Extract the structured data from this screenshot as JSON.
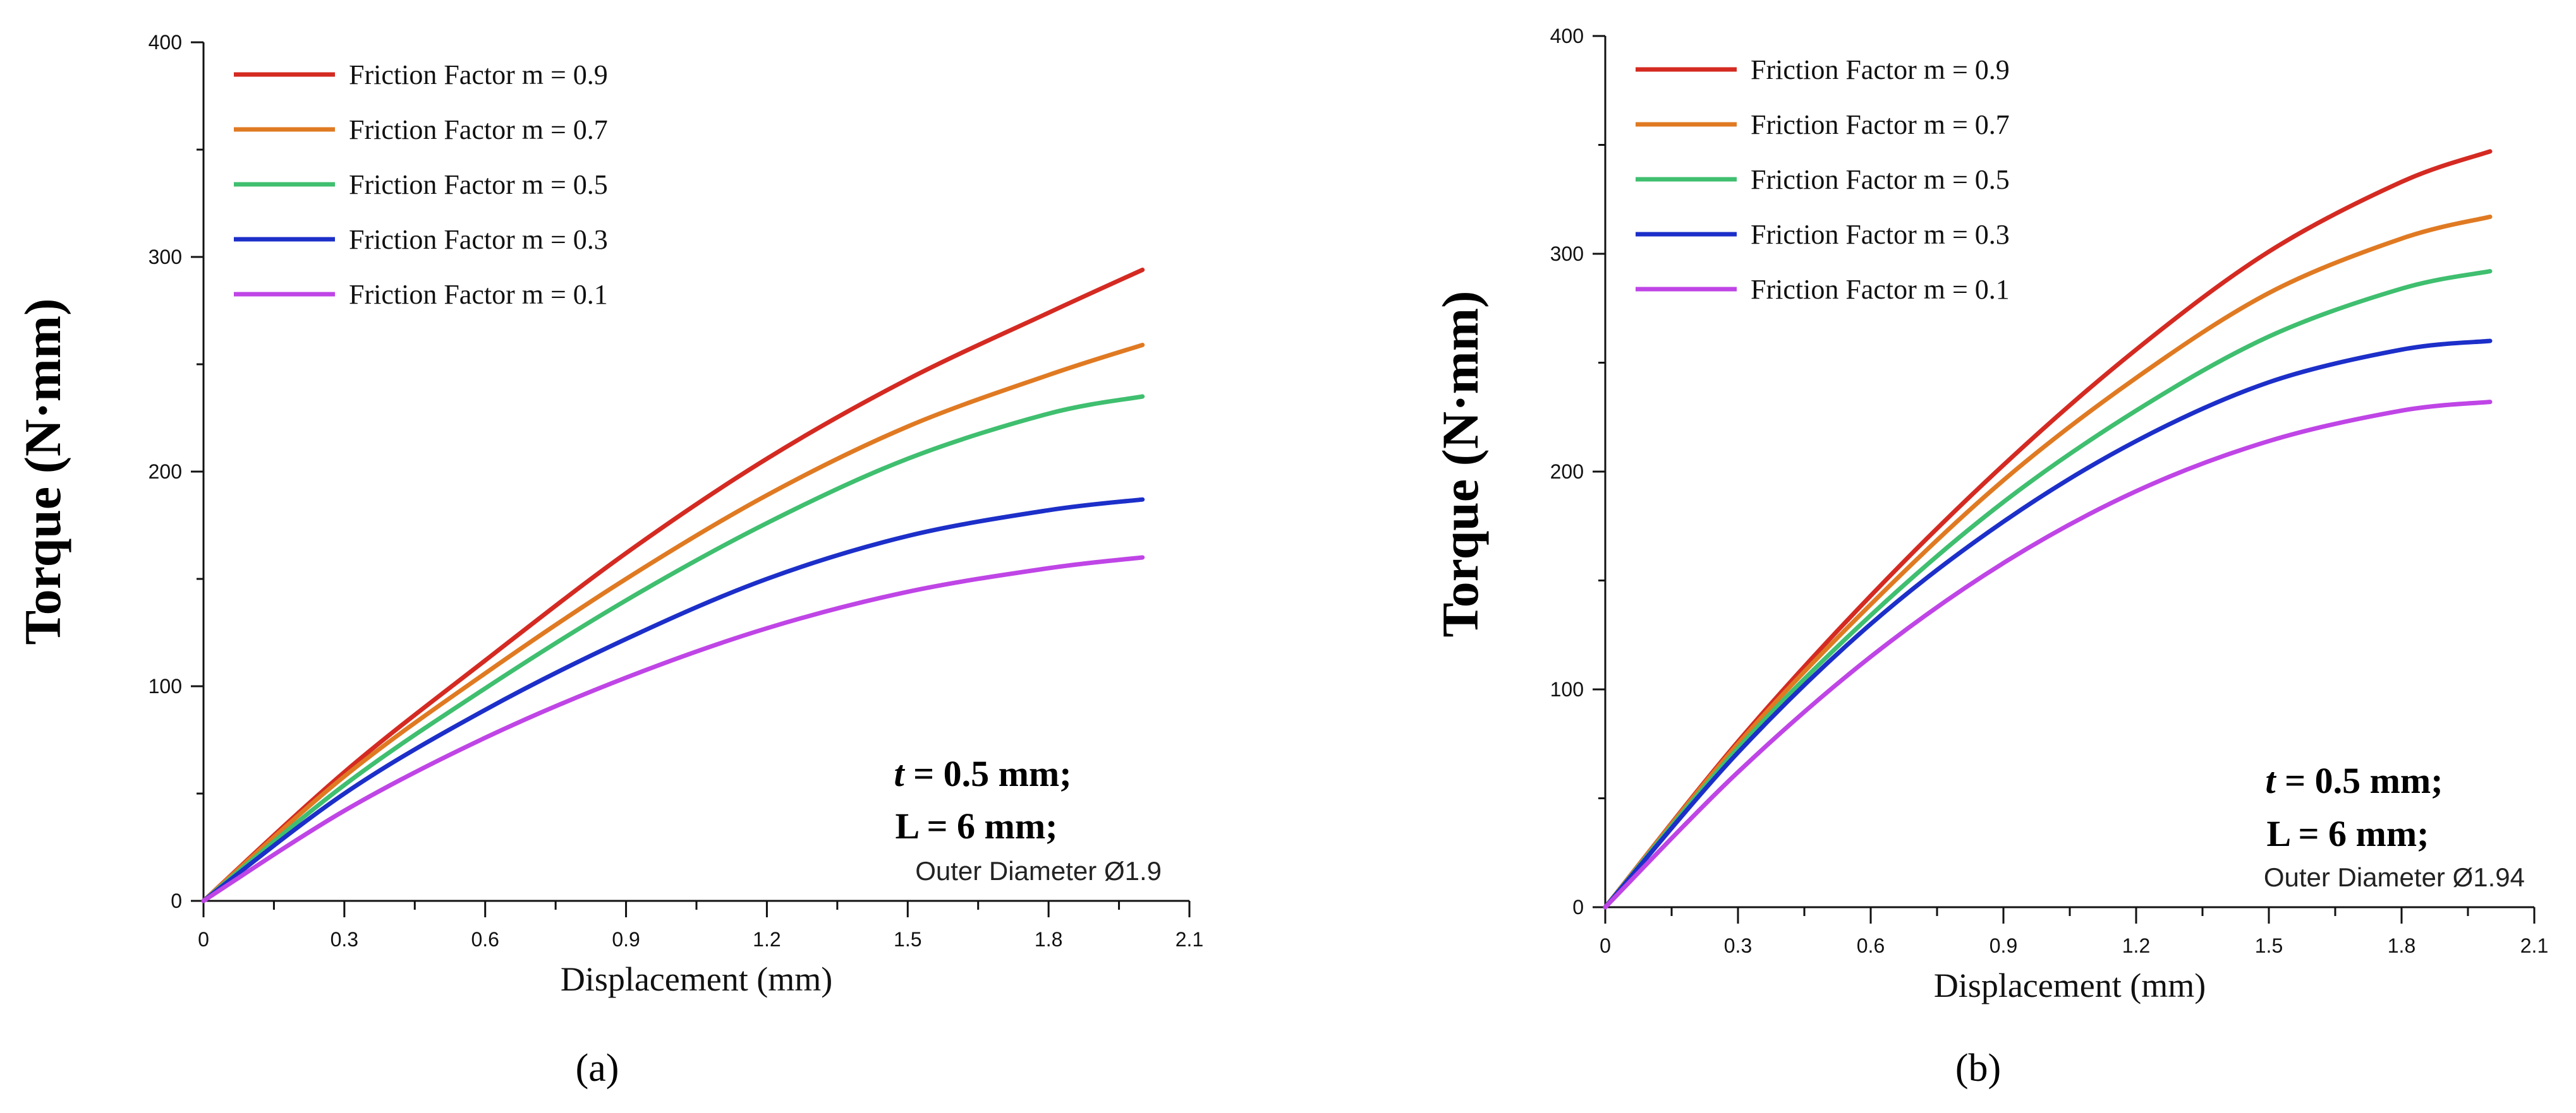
{
  "chart_data": [
    {
      "type": "line",
      "panel_caption": "(a)",
      "xlabel": "Displacement (mm)",
      "ylabel": "Torque (N·mm)",
      "xlim": [
        0,
        2.1
      ],
      "ylim": [
        0,
        400
      ],
      "xticks": [
        "0",
        "0.3",
        "0.6",
        "0.9",
        "1.2",
        "1.5",
        "1.8",
        "2.1"
      ],
      "yticks": [
        "0",
        "100",
        "200",
        "300",
        "400"
      ],
      "legend_position": "top-left",
      "annotation": {
        "line1_var": "t",
        "line1_rest": " = 0.5 mm;",
        "line2": "L = 6 mm;",
        "line3": "Outer Diameter Ø1.9"
      },
      "x": [
        0,
        0.3,
        0.6,
        0.9,
        1.2,
        1.5,
        1.8,
        2.0
      ],
      "series": [
        {
          "name": "Friction Factor m = 0.9",
          "color": "#d42a22",
          "values": [
            0,
            60,
            112,
            162,
            206,
            243,
            274,
            294
          ]
        },
        {
          "name": "Friction Factor m = 0.7",
          "color": "#e07a22",
          "values": [
            0,
            58,
            106,
            150,
            189,
            221,
            245,
            259
          ]
        },
        {
          "name": "Friction Factor m = 0.5",
          "color": "#3fbf6f",
          "values": [
            0,
            54,
            99,
            140,
            176,
            206,
            227,
            235
          ]
        },
        {
          "name": "Friction Factor m = 0.3",
          "color": "#1c2fc9",
          "values": [
            0,
            50,
            89,
            122,
            150,
            170,
            182,
            187
          ]
        },
        {
          "name": "Friction Factor m = 0.1",
          "color": "#bf45e6",
          "values": [
            0,
            42,
            76,
            104,
            127,
            144,
            155,
            160
          ]
        }
      ]
    },
    {
      "type": "line",
      "panel_caption": "(b)",
      "xlabel": "Displacement (mm)",
      "ylabel": "Torque (N·mm)",
      "xlim": [
        0,
        2.1
      ],
      "ylim": [
        0,
        400
      ],
      "xticks": [
        "0",
        "0.3",
        "0.6",
        "0.9",
        "1.2",
        "1.5",
        "1.8",
        "2.1"
      ],
      "yticks": [
        "0",
        "100",
        "200",
        "300",
        "400"
      ],
      "legend_position": "top-left",
      "annotation": {
        "line1_var": "t",
        "line1_rest": " = 0.5 mm;",
        "line2": "L = 6 mm;",
        "line3": "Outer Diameter Ø1.94"
      },
      "x": [
        0,
        0.3,
        0.6,
        0.9,
        1.2,
        1.5,
        1.8,
        2.0
      ],
      "series": [
        {
          "name": "Friction Factor m = 0.9",
          "color": "#d42a22",
          "values": [
            0,
            76,
            143,
            203,
            256,
            301,
            333,
            347
          ]
        },
        {
          "name": "Friction Factor m = 0.7",
          "color": "#e07a22",
          "values": [
            0,
            75,
            139,
            196,
            243,
            282,
            307,
            317
          ]
        },
        {
          "name": "Friction Factor m = 0.5",
          "color": "#3fbf6f",
          "values": [
            0,
            73,
            134,
            186,
            228,
            262,
            284,
            292
          ]
        },
        {
          "name": "Friction Factor m = 0.3",
          "color": "#1c2fc9",
          "values": [
            0,
            71,
            130,
            177,
            214,
            241,
            256,
            260
          ]
        },
        {
          "name": "Friction Factor m = 0.1",
          "color": "#bf45e6",
          "values": [
            0,
            62,
            115,
            158,
            191,
            214,
            228,
            232
          ]
        }
      ]
    }
  ]
}
